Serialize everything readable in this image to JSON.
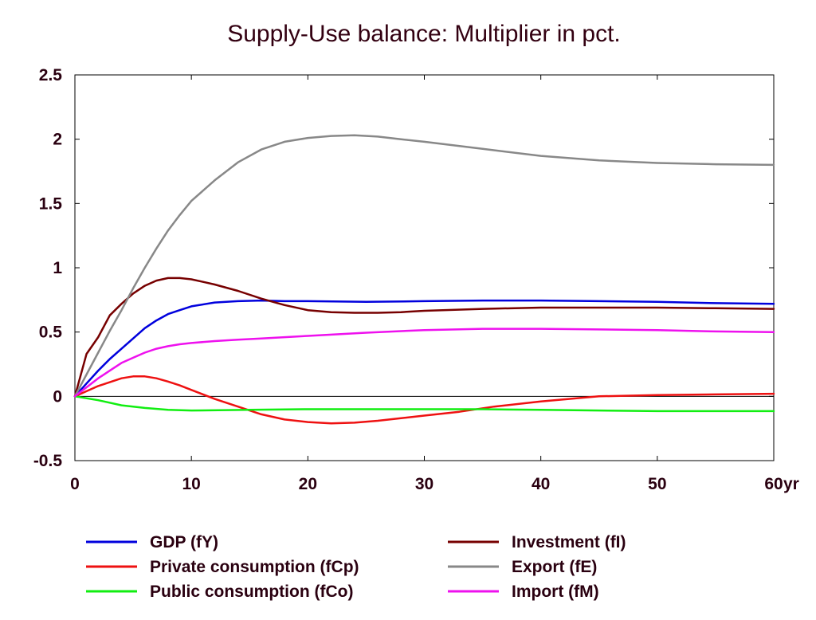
{
  "chart_data": {
    "type": "line",
    "title": "Supply-Use balance: Multiplier in pct.",
    "xlabel": "",
    "ylabel": "",
    "x_unit_label": "yr",
    "xlim": [
      0,
      60
    ],
    "ylim": [
      -0.5,
      2.5
    ],
    "x_ticks": [
      0,
      10,
      20,
      30,
      40,
      50,
      60
    ],
    "y_ticks": [
      2.5,
      2,
      1.5,
      1,
      0.5,
      0,
      -0.5
    ],
    "y_tick_labels": [
      "2.5",
      "2",
      "1.5",
      "1",
      "0.5",
      "0",
      "-0.5"
    ],
    "grid": false,
    "zero_line": true,
    "legend_placement": "bottom",
    "series": [
      {
        "name": "GDP (fY)",
        "color": "#0000dd",
        "x": [
          0,
          1,
          2,
          3,
          4,
          5,
          6,
          7,
          8,
          9,
          10,
          12,
          14,
          16,
          18,
          20,
          25,
          30,
          35,
          40,
          45,
          50,
          55,
          60
        ],
        "y": [
          0,
          0.1,
          0.2,
          0.29,
          0.37,
          0.45,
          0.53,
          0.59,
          0.64,
          0.67,
          0.7,
          0.73,
          0.74,
          0.745,
          0.74,
          0.74,
          0.735,
          0.74,
          0.745,
          0.745,
          0.74,
          0.735,
          0.725,
          0.72
        ]
      },
      {
        "name": "Private consumption (fCp)",
        "color": "#ee1111",
        "x": [
          0,
          1,
          2,
          3,
          4,
          5,
          6,
          7,
          8,
          9,
          10,
          11,
          12,
          14,
          16,
          18,
          20,
          22,
          24,
          26,
          28,
          30,
          33,
          36,
          40,
          45,
          50,
          55,
          60
        ],
        "y": [
          0,
          0.04,
          0.08,
          0.11,
          0.14,
          0.155,
          0.155,
          0.14,
          0.115,
          0.085,
          0.05,
          0.015,
          -0.02,
          -0.08,
          -0.14,
          -0.18,
          -0.2,
          -0.21,
          -0.205,
          -0.19,
          -0.17,
          -0.15,
          -0.12,
          -0.08,
          -0.04,
          0,
          0.01,
          0.015,
          0.02
        ]
      },
      {
        "name": "Public consumption (fCo)",
        "color": "#11ee11",
        "x": [
          0,
          2,
          4,
          6,
          8,
          10,
          15,
          20,
          25,
          30,
          35,
          40,
          45,
          50,
          55,
          60
        ],
        "y": [
          0,
          -0.03,
          -0.07,
          -0.09,
          -0.105,
          -0.11,
          -0.105,
          -0.1,
          -0.1,
          -0.1,
          -0.1,
          -0.105,
          -0.11,
          -0.115,
          -0.115,
          -0.115
        ]
      },
      {
        "name": "Investment (fI)",
        "color": "#770000",
        "x": [
          0,
          1,
          2,
          3,
          4,
          5,
          6,
          7,
          8,
          9,
          10,
          11,
          12,
          14,
          16,
          18,
          20,
          22,
          24,
          26,
          28,
          30,
          35,
          40,
          45,
          50,
          55,
          60
        ],
        "y": [
          0,
          0.33,
          0.46,
          0.63,
          0.72,
          0.8,
          0.86,
          0.9,
          0.92,
          0.92,
          0.91,
          0.89,
          0.87,
          0.82,
          0.76,
          0.71,
          0.67,
          0.655,
          0.65,
          0.65,
          0.655,
          0.665,
          0.68,
          0.69,
          0.69,
          0.69,
          0.685,
          0.68
        ]
      },
      {
        "name": "Export (fE)",
        "color": "#888888",
        "x": [
          0,
          1,
          2,
          3,
          4,
          5,
          6,
          7,
          8,
          9,
          10,
          11,
          12,
          14,
          16,
          18,
          20,
          22,
          24,
          26,
          28,
          30,
          35,
          40,
          45,
          50,
          55,
          60
        ],
        "y": [
          0,
          0.17,
          0.34,
          0.51,
          0.67,
          0.84,
          1.0,
          1.15,
          1.29,
          1.41,
          1.52,
          1.6,
          1.68,
          1.82,
          1.92,
          1.98,
          2.01,
          2.025,
          2.03,
          2.02,
          2.0,
          1.98,
          1.925,
          1.87,
          1.835,
          1.815,
          1.805,
          1.8
        ]
      },
      {
        "name": "Import (fM)",
        "color": "#ee11ee",
        "x": [
          0,
          1,
          2,
          3,
          4,
          5,
          6,
          7,
          8,
          9,
          10,
          12,
          14,
          16,
          18,
          20,
          25,
          30,
          35,
          40,
          45,
          50,
          55,
          60
        ],
        "y": [
          0,
          0.07,
          0.14,
          0.2,
          0.26,
          0.3,
          0.34,
          0.37,
          0.39,
          0.405,
          0.415,
          0.43,
          0.44,
          0.45,
          0.46,
          0.47,
          0.495,
          0.515,
          0.525,
          0.525,
          0.52,
          0.515,
          0.505,
          0.5
        ]
      }
    ]
  }
}
